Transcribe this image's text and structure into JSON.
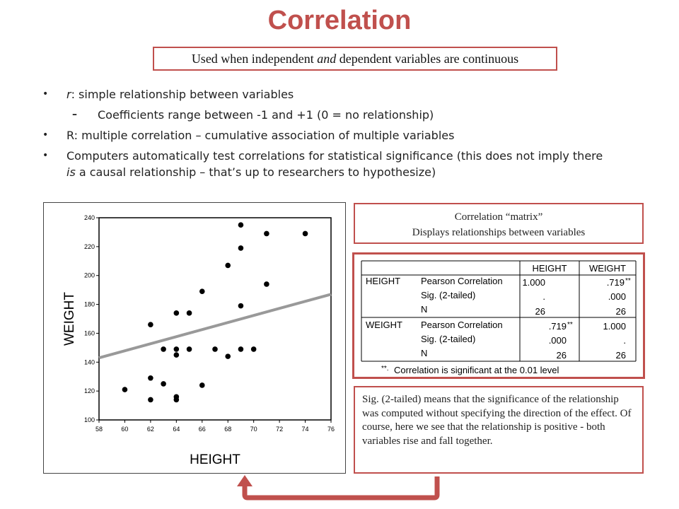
{
  "slide": {
    "title": "Correlation",
    "subtitle_pre": "Used when independent ",
    "subtitle_em": "and",
    "subtitle_post": " dependent variables are continuous",
    "accent_color": "#c0504d"
  },
  "bullets": {
    "b1_em": "r",
    "b1_rest": ": simple relationship between variables",
    "b1_sub": "Coefficients range between -1 and +1 (0 = no relationship)",
    "b2": "R: multiple correlation – cumulative association of multiple variables",
    "b3_a": "Computers automatically test correlations for statistical significance (this does not imply there",
    "b3_em": "is",
    "b3_b": " a causal relationship – that’s up to researchers to hypothesize)"
  },
  "matrix_info": {
    "line1": "Correlation “matrix”",
    "line2": "Displays relationships between variables"
  },
  "matrix": {
    "col_height": "HEIGHT",
    "col_weight": "WEIGHT",
    "row_height": "HEIGHT",
    "row_weight": "WEIGHT",
    "stat_pearson": "Pearson Correlation",
    "stat_sig": "Sig. (2-tailed)",
    "stat_n": "N",
    "h_h_r": "1.000",
    "h_h_sig": ".",
    "h_h_n": "26",
    "h_w_r": ".719",
    "h_w_sig": ".000",
    "h_w_n": "26",
    "w_h_r": ".719",
    "w_h_sig": ".000",
    "w_h_n": "26",
    "w_w_r": "1.000",
    "w_w_sig": ".",
    "w_w_n": "26",
    "stars": "**",
    "footnote_mark": "**.",
    "footnote": "Correlation is significant at the 0.01 level"
  },
  "note": {
    "text": "Sig. (2-tailed) means that the significance of the relationship was computed without specifying the direction of the effect. Of course, here we see that the relationship is positive - both variables rise and fall together."
  },
  "chart_data": {
    "type": "scatter",
    "xlabel": "HEIGHT",
    "ylabel": "WEIGHT",
    "xlim": [
      58,
      76
    ],
    "ylim": [
      100,
      240
    ],
    "x_ticks": [
      "58",
      "60",
      "62",
      "64",
      "66",
      "68",
      "70",
      "72",
      "74",
      "76"
    ],
    "y_ticks": [
      "100",
      "120",
      "140",
      "160",
      "180",
      "200",
      "220",
      "240"
    ],
    "grid": false,
    "fit_line": {
      "x": [
        58,
        76
      ],
      "y": [
        143,
        187
      ]
    },
    "points": [
      {
        "x": 60,
        "y": 121
      },
      {
        "x": 62,
        "y": 114
      },
      {
        "x": 62,
        "y": 129
      },
      {
        "x": 62,
        "y": 166
      },
      {
        "x": 63,
        "y": 125
      },
      {
        "x": 63,
        "y": 149
      },
      {
        "x": 64,
        "y": 114
      },
      {
        "x": 64,
        "y": 116
      },
      {
        "x": 64,
        "y": 145
      },
      {
        "x": 64,
        "y": 149
      },
      {
        "x": 64,
        "y": 174
      },
      {
        "x": 65,
        "y": 149
      },
      {
        "x": 65,
        "y": 174
      },
      {
        "x": 66,
        "y": 124
      },
      {
        "x": 66,
        "y": 189
      },
      {
        "x": 67,
        "y": 149
      },
      {
        "x": 68,
        "y": 144
      },
      {
        "x": 68,
        "y": 207
      },
      {
        "x": 69,
        "y": 149
      },
      {
        "x": 69,
        "y": 179
      },
      {
        "x": 69,
        "y": 219
      },
      {
        "x": 69,
        "y": 235
      },
      {
        "x": 70,
        "y": 149
      },
      {
        "x": 71,
        "y": 194
      },
      {
        "x": 71,
        "y": 229
      },
      {
        "x": 74,
        "y": 229
      }
    ]
  }
}
